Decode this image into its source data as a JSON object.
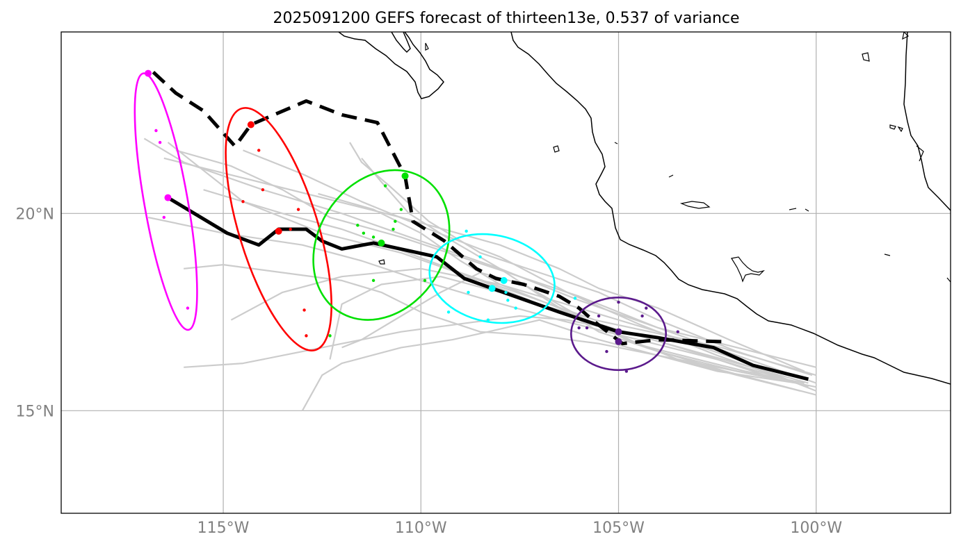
{
  "title": "2025091200 GEFS forecast of thirteen13e, 0.537 of variance",
  "map": {
    "lon_range": [
      -119.1,
      -96.6
    ],
    "lat_range": [
      12.4,
      24.6
    ],
    "lon_ticks": [
      {
        "value": -115,
        "label": "115°W"
      },
      {
        "value": -110,
        "label": "110°W"
      },
      {
        "value": -105,
        "label": "105°W"
      },
      {
        "value": -100,
        "label": "100°W"
      }
    ],
    "lat_ticks": [
      {
        "value": 20,
        "label": "20°N"
      },
      {
        "value": 15,
        "label": "15°N"
      }
    ],
    "colors": {
      "ensemble": "#cccccc",
      "mean": "#000000",
      "coast": "#000000",
      "grid": "#b0b0b0",
      "clusters": [
        "#ff00ff",
        "#ff0000",
        "#00e000",
        "#00ffff",
        "#5b1a8c"
      ]
    }
  },
  "chart_data": {
    "type": "map-tracks",
    "title": "2025091200 GEFS forecast of thirteen13e, 0.537 of variance",
    "xlabel": "",
    "ylabel": "",
    "mean_track": [
      [
        -100.2,
        15.8
      ],
      [
        -101.6,
        16.15
      ],
      [
        -102.6,
        16.6
      ],
      [
        -104.0,
        16.85
      ],
      [
        -105.0,
        17.0
      ],
      [
        -106.5,
        17.5
      ],
      [
        -108.9,
        18.35
      ],
      [
        -109.6,
        18.9
      ],
      [
        -111.2,
        19.25
      ],
      [
        -112.0,
        19.1
      ],
      [
        -112.5,
        19.3
      ],
      [
        -112.9,
        19.6
      ],
      [
        -113.6,
        19.6
      ],
      [
        -114.1,
        19.2
      ],
      [
        -114.9,
        19.5
      ],
      [
        -116.4,
        20.4
      ]
    ],
    "alt_track": [
      [
        -102.4,
        16.75
      ],
      [
        -104.0,
        16.8
      ],
      [
        -104.9,
        16.7
      ],
      [
        -105.6,
        17.25
      ],
      [
        -106.0,
        17.6
      ],
      [
        -106.5,
        17.9
      ],
      [
        -107.4,
        18.2
      ],
      [
        -108.1,
        18.35
      ],
      [
        -108.6,
        18.6
      ],
      [
        -109.4,
        19.3
      ],
      [
        -110.2,
        19.8
      ],
      [
        -110.4,
        20.95
      ],
      [
        -111.1,
        22.3
      ],
      [
        -112.0,
        22.5
      ],
      [
        -112.9,
        22.85
      ],
      [
        -114.3,
        22.25
      ],
      [
        -114.7,
        21.7
      ],
      [
        -115.5,
        22.6
      ],
      [
        -116.2,
        23.05
      ],
      [
        -116.9,
        23.7
      ]
    ],
    "ensemble_tracks": [
      [
        [
          -100.0,
          16.1
        ],
        [
          -102.0,
          16.6
        ],
        [
          -104.0,
          17.1
        ],
        [
          -106.0,
          17.8
        ],
        [
          -108.0,
          18.6
        ],
        [
          -110.0,
          19.3
        ],
        [
          -112.0,
          20.0
        ],
        [
          -114.0,
          20.6
        ],
        [
          -116.0,
          21.3
        ],
        [
          -117.0,
          21.9
        ]
      ],
      [
        [
          -100.2,
          15.7
        ],
        [
          -102.0,
          16.2
        ],
        [
          -104.5,
          16.9
        ],
        [
          -106.5,
          17.5
        ],
        [
          -108.5,
          18.3
        ],
        [
          -110.5,
          19.0
        ],
        [
          -112.5,
          19.5
        ],
        [
          -114.5,
          20.3
        ],
        [
          -116.4,
          21.8
        ]
      ],
      [
        [
          -100.2,
          15.6
        ],
        [
          -102.5,
          16.4
        ],
        [
          -104.5,
          17.2
        ],
        [
          -106.3,
          18.0
        ],
        [
          -108.0,
          18.9
        ],
        [
          -109.8,
          19.6
        ],
        [
          -111.5,
          20.3
        ],
        [
          -113.0,
          21.0
        ],
        [
          -114.5,
          21.6
        ]
      ],
      [
        [
          -100.0,
          15.5
        ],
        [
          -102.0,
          16.3
        ],
        [
          -104.0,
          17.0
        ],
        [
          -106.0,
          17.6
        ],
        [
          -108.0,
          18.2
        ],
        [
          -110.0,
          18.6
        ],
        [
          -112.0,
          18.4
        ],
        [
          -113.5,
          18.0
        ],
        [
          -114.8,
          17.3
        ]
      ],
      [
        [
          -100.0,
          15.4
        ],
        [
          -102.3,
          16.0
        ],
        [
          -104.3,
          16.6
        ],
        [
          -106.0,
          17.4
        ],
        [
          -108.0,
          18.0
        ],
        [
          -109.5,
          18.4
        ],
        [
          -111.0,
          18.2
        ],
        [
          -112.0,
          17.7
        ],
        [
          -112.3,
          16.3
        ]
      ],
      [
        [
          -100.1,
          15.9
        ],
        [
          -102.0,
          16.5
        ],
        [
          -104.0,
          17.3
        ],
        [
          -105.5,
          18.0
        ],
        [
          -107.0,
          18.5
        ],
        [
          -108.5,
          19.0
        ],
        [
          -109.8,
          19.8
        ],
        [
          -110.8,
          20.7
        ],
        [
          -111.5,
          21.3
        ],
        [
          -111.8,
          21.8
        ]
      ],
      [
        [
          -100.3,
          16.0
        ],
        [
          -102.2,
          16.8
        ],
        [
          -104.0,
          17.6
        ],
        [
          -105.5,
          18.1
        ],
        [
          -106.5,
          18.6
        ],
        [
          -108.0,
          19.2
        ],
        [
          -110.5,
          19.9
        ],
        [
          -112.5,
          20.4
        ],
        [
          -114.5,
          20.9
        ],
        [
          -116.5,
          21.4
        ]
      ],
      [
        [
          -100.5,
          15.7
        ],
        [
          -102.5,
          16.0
        ],
        [
          -104.0,
          16.4
        ],
        [
          -105.5,
          16.8
        ],
        [
          -107.0,
          17.3
        ],
        [
          -108.3,
          17.0
        ],
        [
          -109.2,
          16.8
        ],
        [
          -110.5,
          16.6
        ],
        [
          -112.0,
          16.2
        ],
        [
          -112.5,
          15.9
        ],
        [
          -113.0,
          15.0
        ]
      ],
      [
        [
          -100.4,
          15.5
        ],
        [
          -102.0,
          15.9
        ],
        [
          -103.5,
          16.3
        ],
        [
          -105.0,
          16.9
        ],
        [
          -106.5,
          17.6
        ],
        [
          -108.0,
          18.2
        ],
        [
          -109.0,
          18.8
        ],
        [
          -110.0,
          19.5
        ],
        [
          -111.2,
          20.1
        ],
        [
          -112.6,
          20.5
        ]
      ],
      [
        [
          -100.8,
          15.8
        ],
        [
          -102.5,
          16.3
        ],
        [
          -104.5,
          16.8
        ],
        [
          -106.5,
          17.3
        ],
        [
          -108.3,
          17.8
        ],
        [
          -110.0,
          18.3
        ],
        [
          -111.5,
          18.8
        ],
        [
          -113.0,
          19.2
        ],
        [
          -115.0,
          19.5
        ],
        [
          -116.9,
          19.9
        ]
      ],
      [
        [
          -101.0,
          15.8
        ],
        [
          -102.8,
          16.4
        ],
        [
          -104.8,
          17.0
        ],
        [
          -106.3,
          17.3
        ],
        [
          -107.5,
          17.4
        ],
        [
          -109.0,
          17.2
        ],
        [
          -110.5,
          17.0
        ],
        [
          -112.5,
          16.6
        ],
        [
          -114.5,
          16.2
        ],
        [
          -116.0,
          16.1
        ]
      ],
      [
        [
          -100.0,
          15.7
        ],
        [
          -102.0,
          16.4
        ],
        [
          -104.0,
          17.1
        ],
        [
          -106.0,
          17.9
        ],
        [
          -107.5,
          18.4
        ],
        [
          -109.0,
          18.9
        ],
        [
          -110.5,
          19.4
        ],
        [
          -112.3,
          19.9
        ],
        [
          -113.5,
          20.6
        ],
        [
          -114.8,
          21.2
        ],
        [
          -116.2,
          21.6
        ]
      ],
      [
        [
          -100.0,
          15.9
        ],
        [
          -102.4,
          16.6
        ],
        [
          -104.2,
          17.0
        ],
        [
          -105.6,
          17.3
        ],
        [
          -107.3,
          17.9
        ],
        [
          -109.0,
          18.5
        ],
        [
          -110.6,
          19.1
        ],
        [
          -112.0,
          19.6
        ],
        [
          -113.5,
          20.0
        ],
        [
          -115.5,
          20.6
        ]
      ],
      [
        [
          -100.0,
          15.6
        ],
        [
          -102.0,
          16.0
        ],
        [
          -104.0,
          16.5
        ],
        [
          -105.5,
          17.0
        ],
        [
          -106.8,
          17.8
        ],
        [
          -108.0,
          18.6
        ],
        [
          -109.2,
          19.3
        ],
        [
          -110.3,
          20.0
        ],
        [
          -111.0,
          20.8
        ],
        [
          -111.5,
          21.4
        ]
      ],
      [
        [
          -101.0,
          15.8
        ],
        [
          -103.0,
          16.2
        ],
        [
          -105.5,
          16.7
        ],
        [
          -107.0,
          16.9
        ],
        [
          -108.5,
          17.0
        ],
        [
          -110.0,
          17.5
        ],
        [
          -111.0,
          18.0
        ],
        [
          -112.0,
          18.3
        ],
        [
          -113.5,
          18.5
        ],
        [
          -115.0,
          18.7
        ],
        [
          -116.0,
          18.6
        ]
      ],
      [
        [
          -100.3,
          15.7
        ],
        [
          -101.8,
          16.0
        ],
        [
          -103.0,
          16.3
        ],
        [
          -104.6,
          16.7
        ],
        [
          -106.0,
          17.4
        ],
        [
          -107.4,
          18.2
        ],
        [
          -108.5,
          18.5
        ],
        [
          -109.5,
          18.0
        ],
        [
          -110.5,
          17.4
        ],
        [
          -111.5,
          16.8
        ],
        [
          -112.0,
          16.6
        ]
      ]
    ],
    "clusters": [
      {
        "color": "#ff00ff",
        "ellipse": {
          "cx": -116.45,
          "cy": 20.3,
          "rx": 0.55,
          "ry": 3.3,
          "tilt_deg": -10
        },
        "large_points": [
          [
            -116.9,
            23.55
          ],
          [
            -116.4,
            20.4
          ]
        ],
        "small_points": [
          [
            -116.7,
            22.1
          ],
          [
            -116.6,
            21.8
          ],
          [
            -116.5,
            19.9
          ],
          [
            -115.9,
            17.6
          ]
        ]
      },
      {
        "color": "#ff0000",
        "ellipse": {
          "cx": -113.6,
          "cy": 19.6,
          "rx": 1.0,
          "ry": 3.2,
          "tilt_deg": -17
        },
        "large_points": [
          [
            -114.3,
            22.25
          ],
          [
            -113.6,
            19.55
          ]
        ],
        "small_points": [
          [
            -114.1,
            21.6
          ],
          [
            -114.0,
            20.6
          ],
          [
            -114.5,
            20.3
          ],
          [
            -113.3,
            19.6
          ],
          [
            -113.1,
            20.1
          ],
          [
            -112.95,
            17.55
          ],
          [
            -112.9,
            16.9
          ]
        ]
      },
      {
        "color": "#00e000",
        "ellipse": {
          "cx": -111.0,
          "cy": 19.2,
          "rx": 2.0,
          "ry": 1.6,
          "tilt_deg": -58
        },
        "large_points": [
          [
            -110.4,
            20.95
          ],
          [
            -111.0,
            19.25
          ]
        ],
        "small_points": [
          [
            -110.9,
            20.7
          ],
          [
            -110.5,
            20.1
          ],
          [
            -110.65,
            19.8
          ],
          [
            -110.7,
            19.6
          ],
          [
            -111.6,
            19.7
          ],
          [
            -111.45,
            19.5
          ],
          [
            -111.2,
            19.4
          ],
          [
            -111.2,
            18.3
          ],
          [
            -112.3,
            16.9
          ],
          [
            -109.9,
            18.3
          ]
        ]
      },
      {
        "color": "#00ffff",
        "ellipse": {
          "cx": -108.2,
          "cy": 18.35,
          "rx": 1.6,
          "ry": 1.1,
          "tilt_deg": 12
        },
        "large_points": [
          [
            -107.9,
            18.3
          ],
          [
            -108.2,
            18.1
          ]
        ],
        "small_points": [
          [
            -108.85,
            19.55
          ],
          [
            -108.5,
            18.9
          ],
          [
            -108.8,
            18.0
          ],
          [
            -107.85,
            18.0
          ],
          [
            -107.8,
            17.8
          ],
          [
            -107.6,
            17.6
          ],
          [
            -108.3,
            17.3
          ],
          [
            -109.3,
            17.5
          ],
          [
            -106.1,
            17.85
          ]
        ]
      },
      {
        "color": "#5b1a8c",
        "ellipse": {
          "cx": -105.0,
          "cy": 16.95,
          "rx": 1.2,
          "ry": 0.92,
          "tilt_deg": 0
        },
        "large_points": [
          [
            -105.0,
            17.0
          ],
          [
            -105.0,
            16.75
          ]
        ],
        "small_points": [
          [
            -105.0,
            17.75
          ],
          [
            -104.3,
            17.6
          ],
          [
            -104.4,
            17.4
          ],
          [
            -105.5,
            17.4
          ],
          [
            -105.8,
            17.1
          ],
          [
            -106.0,
            17.1
          ],
          [
            -103.5,
            17.0
          ],
          [
            -105.3,
            16.5
          ],
          [
            -104.8,
            16.0
          ]
        ]
      }
    ]
  }
}
